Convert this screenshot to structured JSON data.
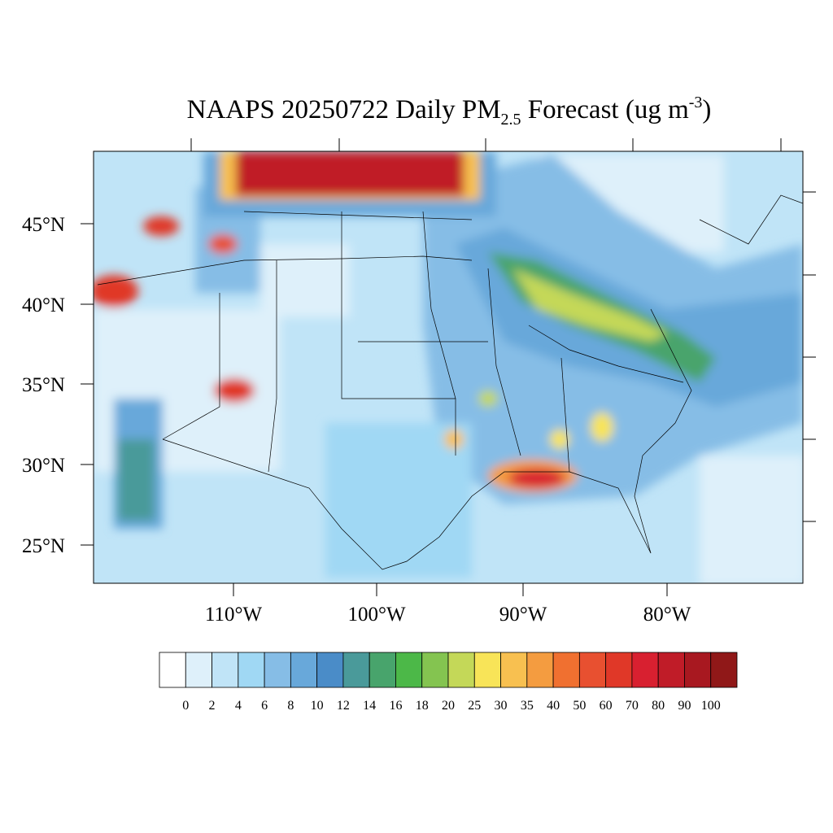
{
  "title": {
    "main": "NAAPS 20250722 Daily PM",
    "subscript": "2.5",
    "middle": " Forecast (ug m",
    "superscript": "-3",
    "end": ")"
  },
  "lat_labels": [
    "45°N",
    "40°N",
    "35°N",
    "30°N",
    "25°N"
  ],
  "lon_labels": [
    "110°W",
    "100°W",
    "90°W",
    "80°W"
  ],
  "colorbar": {
    "colors": [
      "#ffffff",
      "#def0fa",
      "#c0e4f7",
      "#a0d8f4",
      "#86bde6",
      "#68a8da",
      "#4a8cc8",
      "#4a9a9a",
      "#48a46c",
      "#4cb848",
      "#84c450",
      "#c4d858",
      "#f8e458",
      "#f8c050",
      "#f49c40",
      "#f07030",
      "#e85030",
      "#e03828",
      "#d82030",
      "#c01c28",
      "#a81820",
      "#901818"
    ],
    "labels": [
      0,
      2,
      4,
      6,
      8,
      10,
      12,
      14,
      16,
      18,
      20,
      25,
      30,
      35,
      40,
      50,
      60,
      70,
      80,
      90,
      100
    ]
  }
}
